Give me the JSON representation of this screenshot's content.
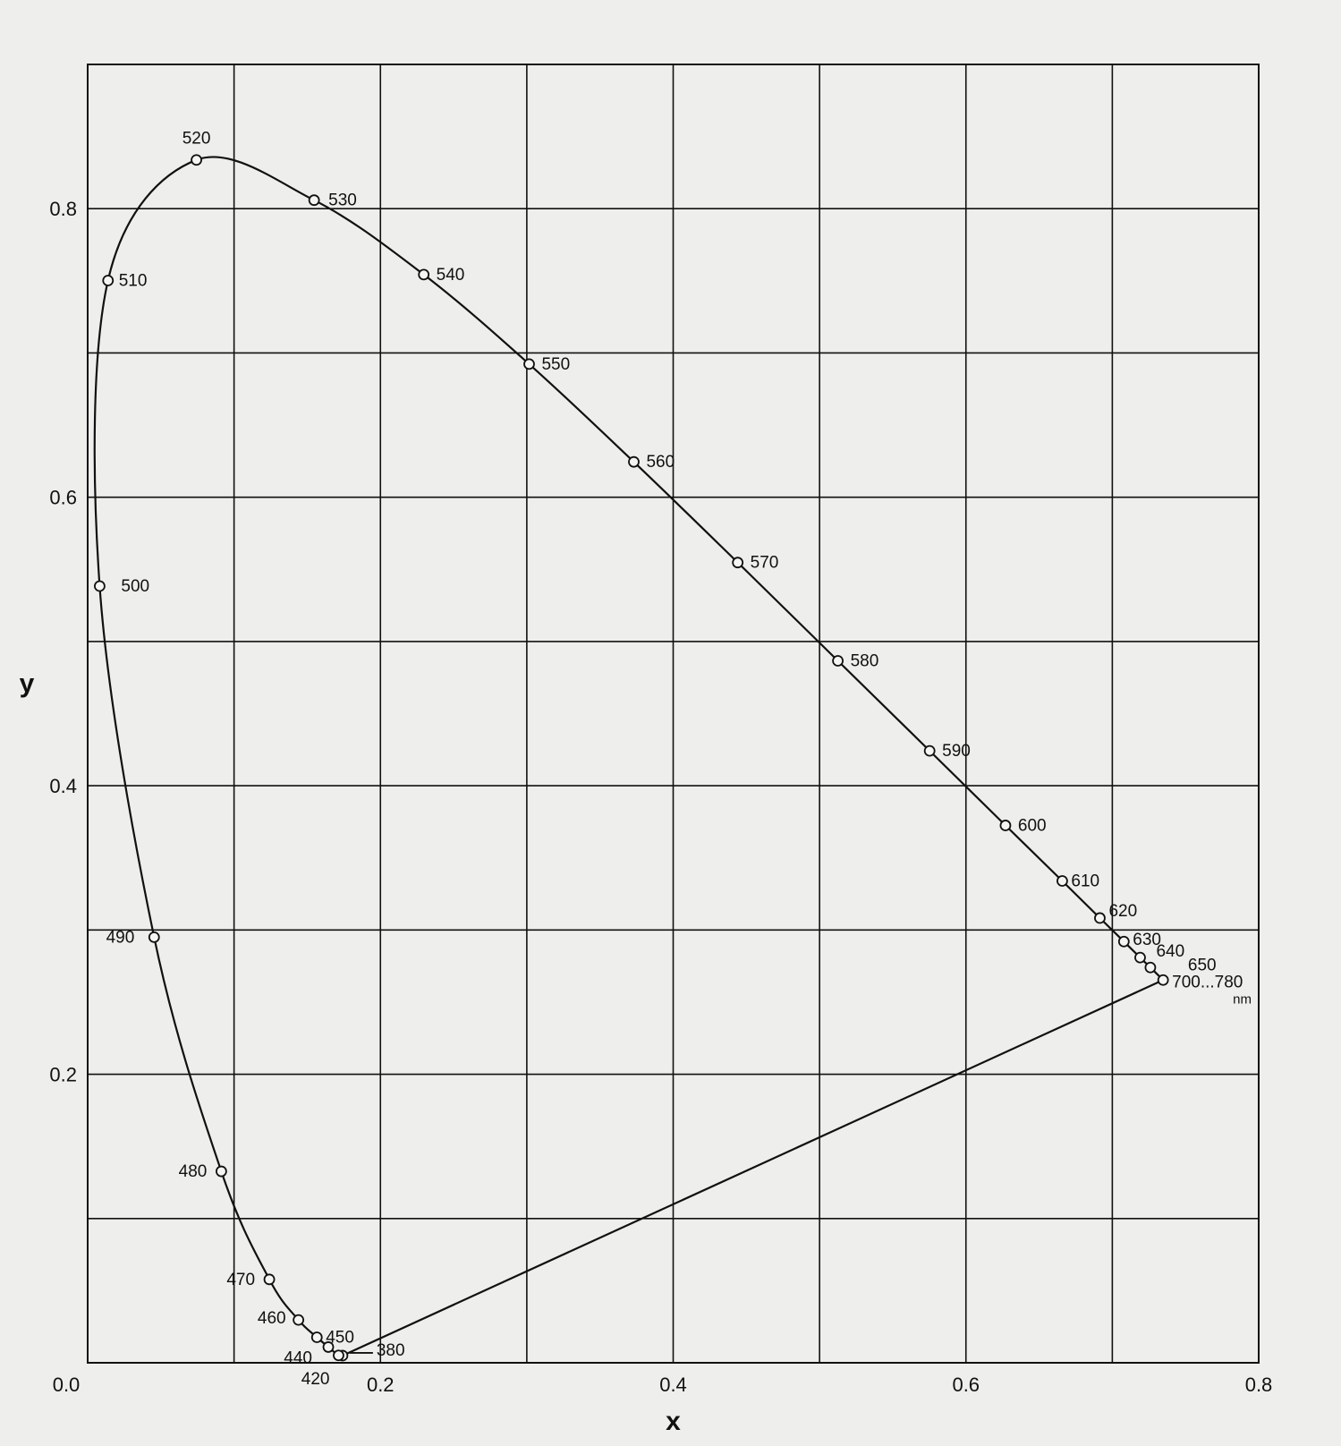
{
  "chart_data": {
    "type": "line",
    "title": "",
    "xlabel": "x",
    "ylabel": "y",
    "xlim": [
      0,
      0.8
    ],
    "ylim": [
      0,
      0.9
    ],
    "grid": true,
    "x_tick_labels": [
      "0.0",
      "0.2",
      "0.4",
      "0.6",
      "0.8"
    ],
    "y_tick_labels": [
      "0.2",
      "0.4",
      "0.6",
      "0.8"
    ],
    "unit_label": "nm",
    "spectral_locus": [
      {
        "wl": "380",
        "x": 0.1741,
        "y": 0.005
      },
      {
        "wl": "420",
        "x": 0.1714,
        "y": 0.0051
      },
      {
        "wl": "440",
        "x": 0.1644,
        "y": 0.0109
      },
      {
        "wl": "450",
        "x": 0.1566,
        "y": 0.0177
      },
      {
        "wl": "460",
        "x": 0.144,
        "y": 0.0297
      },
      {
        "wl": "470",
        "x": 0.1241,
        "y": 0.0578
      },
      {
        "wl": "480",
        "x": 0.0913,
        "y": 0.1327
      },
      {
        "wl": "490",
        "x": 0.0454,
        "y": 0.295
      },
      {
        "wl": "500",
        "x": 0.0082,
        "y": 0.5384
      },
      {
        "wl": "510",
        "x": 0.0139,
        "y": 0.7502
      },
      {
        "wl": "520",
        "x": 0.0743,
        "y": 0.8338
      },
      {
        "wl": "530",
        "x": 0.1547,
        "y": 0.8059
      },
      {
        "wl": "540",
        "x": 0.2296,
        "y": 0.7543
      },
      {
        "wl": "550",
        "x": 0.3016,
        "y": 0.6923
      },
      {
        "wl": "560",
        "x": 0.3731,
        "y": 0.6245
      },
      {
        "wl": "570",
        "x": 0.4441,
        "y": 0.5547
      },
      {
        "wl": "580",
        "x": 0.5125,
        "y": 0.4866
      },
      {
        "wl": "590",
        "x": 0.5752,
        "y": 0.4242
      },
      {
        "wl": "600",
        "x": 0.627,
        "y": 0.3725
      },
      {
        "wl": "610",
        "x": 0.6658,
        "y": 0.334
      },
      {
        "wl": "620",
        "x": 0.6915,
        "y": 0.3083
      },
      {
        "wl": "630",
        "x": 0.7079,
        "y": 0.292
      },
      {
        "wl": "640",
        "x": 0.719,
        "y": 0.2809
      },
      {
        "wl": "650",
        "x": 0.726,
        "y": 0.274
      },
      {
        "wl": "700...780",
        "x": 0.7347,
        "y": 0.2653
      }
    ]
  }
}
